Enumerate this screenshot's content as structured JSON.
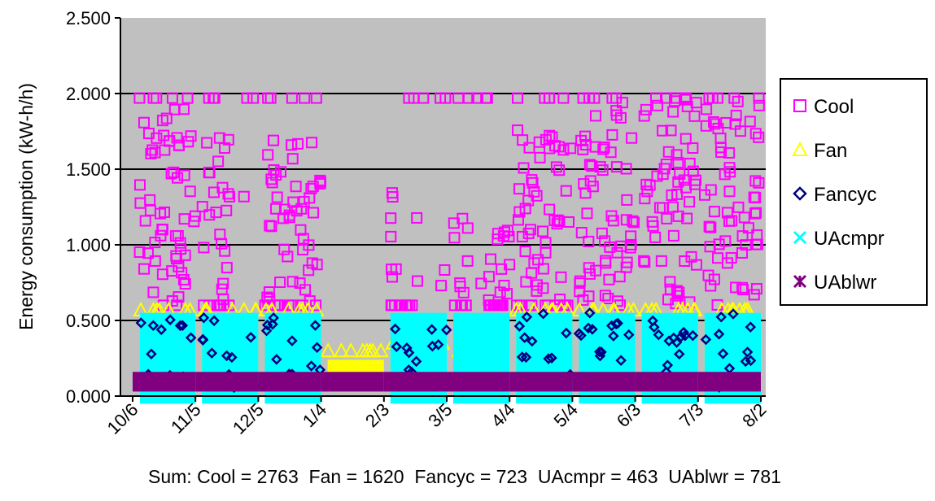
{
  "chart_data": {
    "type": "scatter",
    "title": "",
    "xlabel": "",
    "ylabel": "Energy consumption (kW-h/h)",
    "ylim": [
      0,
      2.5
    ],
    "y_ticks": [
      "0.000",
      "0.500",
      "1.000",
      "1.500",
      "2.000",
      "2.500"
    ],
    "x_ticks": [
      "10/6",
      "11/5",
      "12/5",
      "1/4",
      "2/3",
      "3/5",
      "4/4",
      "5/4",
      "6/3",
      "7/3",
      "8/2"
    ],
    "grid": true,
    "legend_position": "right",
    "background_color": "#c0c0c0",
    "series": [
      {
        "name": "Cool",
        "color": "#ff00ff",
        "marker": "square-icon",
        "levels": {
          "Oct": 1.2,
          "Nov": 1.1,
          "Dec": 1.0,
          "Jan": 0.0,
          "Feb": 0.7,
          "Mar": 0.5,
          "Apr": 1.1,
          "May": 1.3,
          "Jun": 1.3,
          "Jul": 1.3
        }
      },
      {
        "name": "Fan",
        "color": "#ffff00",
        "marker": "triangle-icon",
        "levels": {
          "Oct": 0.57,
          "Nov": 0.57,
          "Dec": 0.57,
          "Jan": 0.3,
          "Feb": 0.35,
          "Mar": 0.3,
          "Apr": 0.57,
          "May": 0.57,
          "Jun": 0.57,
          "Jul": 0.57
        }
      },
      {
        "name": "Fancyc",
        "color": "#000080",
        "marker": "diamond-icon",
        "levels": {
          "Oct": 0.5,
          "Nov": 0.5,
          "Dec": 0.5,
          "Jan": 0.0,
          "Feb": 0.4,
          "Mar": 0.0,
          "Apr": 0.5,
          "May": 0.5,
          "Jun": 0.45,
          "Jul": 0.5
        }
      },
      {
        "name": "UAcmpr",
        "color": "#00ffff",
        "marker": "x-icon",
        "levels": {
          "Oct": 0.55,
          "Nov": 0.55,
          "Dec": 0.55,
          "Jan": 0.0,
          "Feb": 0.55,
          "Mar": 0.55,
          "Apr": 0.55,
          "May": 0.55,
          "Jun": 0.55,
          "Jul": 0.55
        }
      },
      {
        "name": "UAblwr",
        "color": "#800080",
        "marker": "asterisk-icon",
        "levels": {
          "Oct": 0.15,
          "Nov": 0.15,
          "Dec": 0.15,
          "Jan": 0.15,
          "Feb": 0.15,
          "Mar": 0.15,
          "Apr": 0.15,
          "May": 0.15,
          "Jun": 0.15,
          "Jul": 0.15
        }
      }
    ],
    "annotation": "Sum: Cool = 2763  Fan = 1620  Fancyc = 723  UAcmpr = 463  UAblwr = 781"
  }
}
